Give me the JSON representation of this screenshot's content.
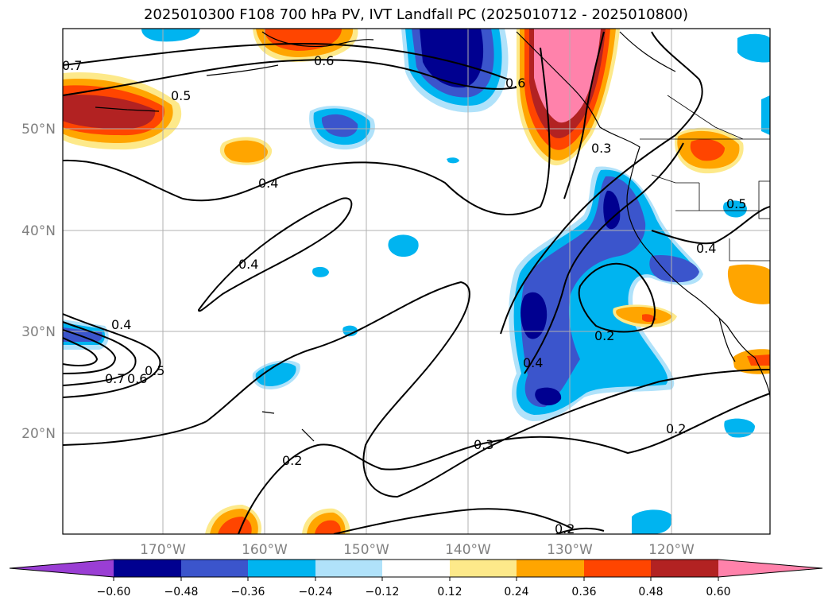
{
  "title": "2025010300 F108 700 hPa PV, IVT Landfall PC (2025010712 - 2025010800)",
  "map": {
    "lon_ticks": [
      "170°W",
      "160°W",
      "150°W",
      "140°W",
      "130°W",
      "120°W"
    ],
    "lat_ticks": [
      "50°N",
      "40°N",
      "30°N",
      "20°N"
    ],
    "contour_labels": [
      "0.7",
      "0.6",
      "0.5",
      "0.4",
      "0.4",
      "0.4",
      "0.7",
      "0.6",
      "0.5",
      "0.3",
      "0.2",
      "0.2",
      "0.3",
      "0.4",
      "0.5",
      "0.4",
      "0.2",
      "0.2",
      "0.6"
    ]
  },
  "colorbar": {
    "tick_labels": [
      "−0.60",
      "−0.48",
      "−0.36",
      "−0.24",
      "−0.12",
      "0.12",
      "0.24",
      "0.36",
      "0.48",
      "0.60"
    ],
    "colors": [
      "#9a3ed4",
      "#000090",
      "#3b55cc",
      "#00b4f0",
      "#b0e2fa",
      "#ffffff",
      "#fde98a",
      "#ffa500",
      "#ff4500",
      "#b22222",
      "#ff82ab"
    ]
  }
}
